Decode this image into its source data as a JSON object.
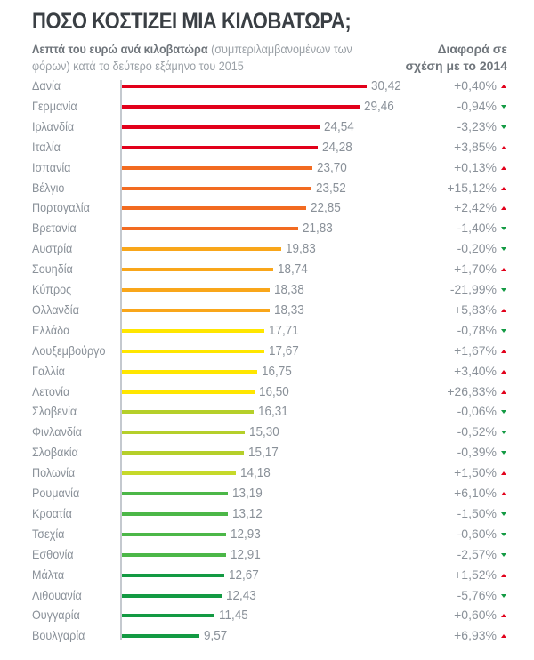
{
  "chart_data": {
    "type": "bar",
    "orientation": "horizontal",
    "title": "ΠΟΣΟ ΚΟΣΤΙΖΕΙ ΜΙΑ ΚΙΛΟΒΑΤΩΡΑ;",
    "subtitle_bold": "Λεπτά του ευρώ ανά κιλοβατώρα",
    "subtitle_rest": " (συμπεριλαμβανομένων των φόρων) κατά το δεύτερο εξάμηνο του 2015",
    "diff_header_1": "Διαφορά σε",
    "diff_header_2": "σχέση με το 2014",
    "categories": [
      "Δανία",
      "Γερμανία",
      "Ιρλανδία",
      "Ιταλία",
      "Ισπανία",
      "Βέλγιο",
      "Πορτογαλία",
      "Βρετανία",
      "Αυστρία",
      "Σουηδία",
      "Κύπρος",
      "Ολλανδία",
      "Ελλάδα",
      "Λουξεμβούργο",
      "Γαλλία",
      "Λετονία",
      "Σλοβενία",
      "Φινλανδία",
      "Σλοβακία",
      "Πολωνία",
      "Ρουμανία",
      "Κροατία",
      "Τσεχία",
      "Εσθονία",
      "Μάλτα",
      "Λιθουανία",
      "Ουγγαρία",
      "Βουλγαρία"
    ],
    "values": [
      30.42,
      29.46,
      24.54,
      24.28,
      23.7,
      23.52,
      22.85,
      21.83,
      19.83,
      18.74,
      18.38,
      18.33,
      17.71,
      17.67,
      16.75,
      16.5,
      16.31,
      15.3,
      15.17,
      14.18,
      13.19,
      13.12,
      12.93,
      12.91,
      12.67,
      12.43,
      11.45,
      9.57
    ],
    "value_labels": [
      "30,42",
      "29,46",
      "24,54",
      "24,28",
      "23,70",
      "23,52",
      "22,85",
      "21,83",
      "19,83",
      "18,74",
      "18,38",
      "18,33",
      "17,71",
      "17,67",
      "16,75",
      "16,50",
      "16,31",
      "15,30",
      "15,17",
      "14,18",
      "13,19",
      "13,12",
      "12,93",
      "12,91",
      "12,67",
      "12,43",
      "11,45",
      "9,57"
    ],
    "diffs": [
      "+0,40%",
      "-0,94%",
      "-3,23%",
      "+3,85%",
      "+0,13%",
      "+15,12%",
      "+2,42%",
      "-1,40%",
      "-0,20%",
      "+1,70%",
      "-21,99%",
      "+5,83%",
      "-0,78%",
      "+1,67%",
      "+3,40%",
      "+26,83%",
      "-0,06%",
      "-0,52%",
      "-0,39%",
      "+1,50%",
      "+6,10%",
      "-1,50%",
      "-0,60%",
      "-2,57%",
      "+1,52%",
      "-5,76%",
      "+0,60%",
      "+6,93%"
    ],
    "bar_colors": [
      "#e2001a",
      "#e2001a",
      "#e2001a",
      "#e2001a",
      "#f26b21",
      "#f26b21",
      "#f26b21",
      "#f26b21",
      "#f9a61a",
      "#f9a61a",
      "#f9a61a",
      "#f9a61a",
      "#ffe600",
      "#ffe600",
      "#ffe600",
      "#ffe600",
      "#b5cf2a",
      "#b5cf2a",
      "#b5cf2a",
      "#c6d92a",
      "#4cb748",
      "#4cb748",
      "#4cb748",
      "#4cb748",
      "#139a43",
      "#139a43",
      "#139a43",
      "#139a43"
    ],
    "up_color": "#e2001a",
    "down_color": "#139a43",
    "xlim": [
      0,
      32
    ]
  }
}
